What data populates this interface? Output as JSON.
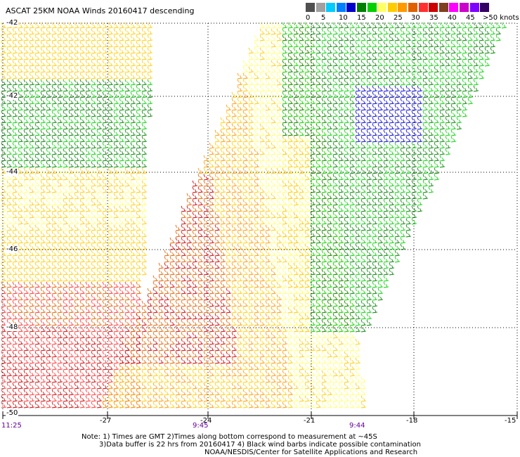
{
  "title": "ASCAT 25KM NOAA Winds 20160417 descending",
  "color_scale": {
    "labels": [
      "0",
      "5",
      "10",
      "15",
      "20",
      "25",
      "30",
      "35",
      "40",
      "45",
      ">50 knots"
    ],
    "colors": [
      "#505050",
      "#a0a0a0",
      "#00ccff",
      "#0080ff",
      "#0000cc",
      "#008000",
      "#00d000",
      "#ffff66",
      "#ffcc00",
      "#ff9900",
      "#e06000",
      "#ff3030",
      "#cc0000",
      "#804020",
      "#ff00ff",
      "#cc00cc",
      "#8000ff",
      "#330066"
    ]
  },
  "lat_labels": [
    "-42",
    "-42",
    "-44",
    "-46",
    "-48",
    "-50"
  ],
  "lon_labels": [
    "-27",
    "-24",
    "-21",
    "-18",
    "-15"
  ],
  "time_labels": [
    "11:25",
    "9:45",
    "9:44"
  ],
  "notes": {
    "line1": "Note: 1) Times are GMT 2)Times along bottom correspond to measurement at ~45S",
    "line2": "3)Data buffer is 22 hrs from 20160417 4) Black wind barbs indicate possible contamination",
    "line3": "NOAA/NESDIS/Center for Satellite Applications and Research"
  },
  "map_data": {
    "swaths": [
      {
        "name": "west",
        "time": "11:25"
      },
      {
        "name": "central",
        "time": "9:45"
      },
      {
        "name": "east",
        "time": "9:44"
      }
    ]
  }
}
